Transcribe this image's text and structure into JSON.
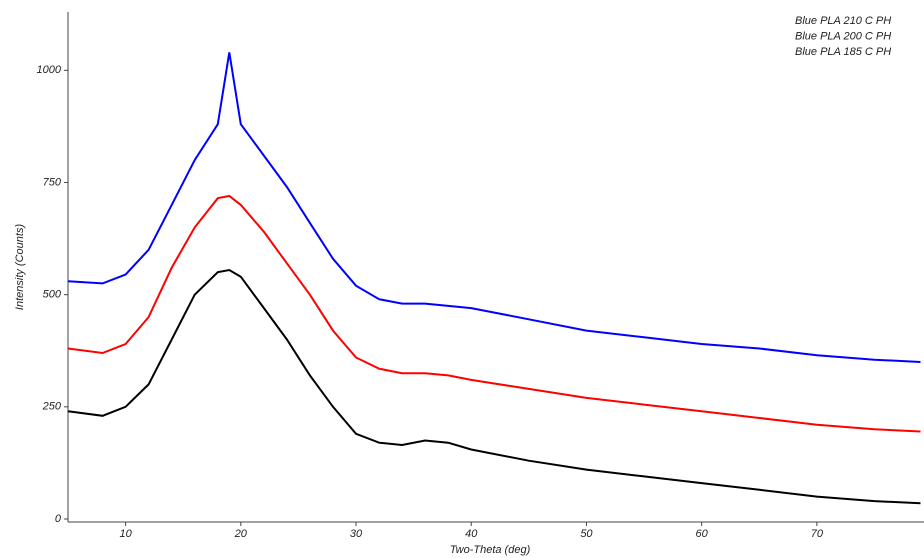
{
  "chart_data": {
    "type": "line",
    "x_label": "Two-Theta (deg)",
    "y_label": "Intensity (Counts)",
    "x": [
      5,
      8,
      10,
      12,
      14,
      16,
      18,
      19,
      20,
      22,
      24,
      26,
      28,
      30,
      32,
      34,
      36,
      38,
      40,
      45,
      50,
      55,
      60,
      65,
      70,
      75,
      79
    ],
    "series": [
      {
        "name": "Blue PLA 210 C PH",
        "color": "#000000",
        "values": [
          240,
          230,
          250,
          300,
          400,
          500,
          550,
          555,
          540,
          470,
          400,
          320,
          250,
          190,
          170,
          165,
          175,
          170,
          155,
          130,
          110,
          95,
          80,
          65,
          50,
          40,
          35
        ]
      },
      {
        "name": "Blue PLA 200 C PH",
        "color": "#ff0000",
        "values": [
          380,
          370,
          390,
          450,
          560,
          650,
          715,
          720,
          700,
          640,
          570,
          500,
          420,
          360,
          335,
          325,
          325,
          320,
          310,
          290,
          270,
          255,
          240,
          225,
          210,
          200,
          195
        ]
      },
      {
        "name": "Blue PLA 185 C PH",
        "color": "#0000ff",
        "values": [
          530,
          525,
          545,
          600,
          700,
          800,
          880,
          1040,
          880,
          810,
          740,
          660,
          580,
          520,
          490,
          480,
          480,
          475,
          470,
          445,
          420,
          405,
          390,
          380,
          365,
          355,
          350
        ]
      }
    ],
    "xlim": [
      5,
      79.3
    ],
    "ylim": [
      0,
      1130
    ],
    "xticks": [
      10,
      20,
      30,
      40,
      50,
      60,
      70
    ],
    "yticks": [
      0,
      250,
      500,
      750,
      1000
    ],
    "grid": false
  }
}
